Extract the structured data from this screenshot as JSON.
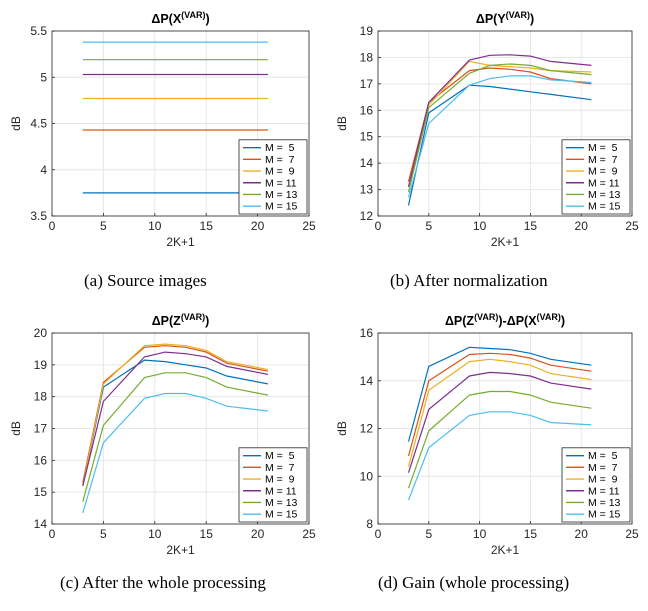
{
  "chart_data": [
    {
      "type": "line",
      "title": "ΔP(X",
      "title_sup": "(VAR)",
      "title_tail": ")",
      "xlabel": "2K+1",
      "ylabel": "dB",
      "xlim": [
        0,
        25
      ],
      "ylim": [
        3.5,
        5.5
      ],
      "xticks": [
        "0",
        "5",
        "10",
        "15",
        "20",
        "25"
      ],
      "yticks": [
        "3.5",
        "4",
        "4.5",
        "5",
        "5.5"
      ],
      "grid": true,
      "legend_position": "bottom-right",
      "caption": "(a) Source images",
      "x": [
        3,
        5,
        7,
        9,
        11,
        13,
        15,
        17,
        19,
        21
      ],
      "series": [
        {
          "name": "M =  5",
          "color": "#0072BD",
          "values": [
            3.75,
            3.75,
            3.75,
            3.75,
            3.75,
            3.75,
            3.75,
            3.75,
            3.75,
            3.75
          ]
        },
        {
          "name": "M =  7",
          "color": "#D95319",
          "values": [
            4.43,
            4.43,
            4.43,
            4.43,
            4.43,
            4.43,
            4.43,
            4.43,
            4.43,
            4.43
          ]
        },
        {
          "name": "M =  9",
          "color": "#EDB120",
          "values": [
            4.77,
            4.77,
            4.77,
            4.77,
            4.77,
            4.77,
            4.77,
            4.77,
            4.77,
            4.77
          ]
        },
        {
          "name": "M = 11",
          "color": "#7E2F8E",
          "values": [
            5.03,
            5.03,
            5.03,
            5.03,
            5.03,
            5.03,
            5.03,
            5.03,
            5.03,
            5.03
          ]
        },
        {
          "name": "M = 13",
          "color": "#77AC30",
          "values": [
            5.19,
            5.19,
            5.19,
            5.19,
            5.19,
            5.19,
            5.19,
            5.19,
            5.19,
            5.19
          ]
        },
        {
          "name": "M = 15",
          "color": "#4DBEEE",
          "values": [
            5.38,
            5.38,
            5.38,
            5.38,
            5.38,
            5.38,
            5.38,
            5.38,
            5.38,
            5.38
          ]
        }
      ]
    },
    {
      "type": "line",
      "title": "ΔP(Y",
      "title_sup": "(VAR)",
      "title_tail": ")",
      "xlabel": "2K+1",
      "ylabel": "dB",
      "xlim": [
        0,
        25
      ],
      "ylim": [
        12,
        19
      ],
      "xticks": [
        "0",
        "5",
        "10",
        "15",
        "20",
        "25"
      ],
      "yticks": [
        "12",
        "13",
        "14",
        "15",
        "16",
        "17",
        "18",
        "19"
      ],
      "grid": true,
      "legend_position": "bottom-right",
      "caption": "(b) After normalization",
      "x": [
        3,
        5,
        9,
        11,
        13,
        15,
        17,
        21
      ],
      "series": [
        {
          "name": "M =  5",
          "color": "#0072BD",
          "values": [
            12.4,
            15.9,
            16.95,
            16.9,
            16.8,
            16.7,
            16.6,
            16.4
          ]
        },
        {
          "name": "M =  7",
          "color": "#D95319",
          "values": [
            13.3,
            16.3,
            17.5,
            17.6,
            17.55,
            17.45,
            17.2,
            17.0
          ]
        },
        {
          "name": "M =  9",
          "color": "#EDB120",
          "values": [
            13.1,
            16.2,
            17.85,
            17.7,
            17.65,
            17.6,
            17.5,
            17.45
          ]
        },
        {
          "name": "M = 11",
          "color": "#7E2F8E",
          "values": [
            13.1,
            16.3,
            17.9,
            18.08,
            18.1,
            18.05,
            17.85,
            17.7
          ]
        },
        {
          "name": "M = 13",
          "color": "#77AC30",
          "values": [
            12.9,
            16.1,
            17.4,
            17.7,
            17.75,
            17.7,
            17.5,
            17.35
          ]
        },
        {
          "name": "M = 15",
          "color": "#4DBEEE",
          "values": [
            12.7,
            15.5,
            16.95,
            17.2,
            17.3,
            17.3,
            17.15,
            17.05
          ]
        }
      ]
    },
    {
      "type": "line",
      "title": "ΔP(Z",
      "title_sup": "(VAR)",
      "title_tail": ")",
      "xlabel": "2K+1",
      "ylabel": "dB",
      "xlim": [
        0,
        25
      ],
      "ylim": [
        14,
        20
      ],
      "xticks": [
        "0",
        "5",
        "10",
        "15",
        "20",
        "25"
      ],
      "yticks": [
        "14",
        "15",
        "16",
        "17",
        "18",
        "19",
        "20"
      ],
      "grid": true,
      "legend_position": "bottom-right",
      "caption": "(c) After the whole processing",
      "x": [
        3,
        5,
        9,
        11,
        13,
        15,
        17,
        21
      ],
      "series": [
        {
          "name": "M =  5",
          "color": "#0072BD",
          "values": [
            15.2,
            18.3,
            19.15,
            19.1,
            19.0,
            18.9,
            18.65,
            18.4
          ]
        },
        {
          "name": "M =  7",
          "color": "#D95319",
          "values": [
            15.3,
            18.45,
            19.55,
            19.6,
            19.55,
            19.4,
            19.05,
            18.8
          ]
        },
        {
          "name": "M =  9",
          "color": "#EDB120",
          "values": [
            15.2,
            18.4,
            19.6,
            19.65,
            19.6,
            19.45,
            19.1,
            18.85
          ]
        },
        {
          "name": "M = 11",
          "color": "#7E2F8E",
          "values": [
            15.2,
            17.85,
            19.25,
            19.4,
            19.35,
            19.25,
            18.95,
            18.7
          ]
        },
        {
          "name": "M = 13",
          "color": "#77AC30",
          "values": [
            14.7,
            17.1,
            18.6,
            18.75,
            18.75,
            18.6,
            18.3,
            18.05
          ]
        },
        {
          "name": "M = 15",
          "color": "#4DBEEE",
          "values": [
            14.35,
            16.55,
            17.95,
            18.1,
            18.1,
            17.95,
            17.7,
            17.55
          ]
        }
      ]
    },
    {
      "type": "line",
      "title": "ΔP(Z",
      "title_sup": "(VAR)",
      "title_mid": ")-ΔP(X",
      "title_sup2": "(VAR)",
      "title_tail": ")",
      "xlabel": "2K+1",
      "ylabel": "dB",
      "xlim": [
        0,
        25
      ],
      "ylim": [
        8,
        16
      ],
      "xticks": [
        "0",
        "5",
        "10",
        "15",
        "20",
        "25"
      ],
      "yticks": [
        "8",
        "10",
        "12",
        "14",
        "16"
      ],
      "grid": true,
      "legend_position": "bottom-right",
      "caption": "(d) Gain (whole processing)",
      "x": [
        3,
        5,
        9,
        11,
        13,
        15,
        17,
        21
      ],
      "series": [
        {
          "name": "M =  5",
          "color": "#0072BD",
          "values": [
            11.45,
            14.6,
            15.4,
            15.35,
            15.3,
            15.15,
            14.9,
            14.65
          ]
        },
        {
          "name": "M =  7",
          "color": "#D95319",
          "values": [
            10.85,
            14.0,
            15.1,
            15.15,
            15.1,
            14.95,
            14.65,
            14.4
          ]
        },
        {
          "name": "M =  9",
          "color": "#EDB120",
          "values": [
            10.4,
            13.6,
            14.8,
            14.9,
            14.8,
            14.65,
            14.3,
            14.05
          ]
        },
        {
          "name": "M = 11",
          "color": "#7E2F8E",
          "values": [
            10.15,
            12.8,
            14.2,
            14.35,
            14.3,
            14.2,
            13.9,
            13.65
          ]
        },
        {
          "name": "M = 13",
          "color": "#77AC30",
          "values": [
            9.5,
            11.9,
            13.4,
            13.55,
            13.55,
            13.4,
            13.1,
            12.85
          ]
        },
        {
          "name": "M = 15",
          "color": "#4DBEEE",
          "values": [
            9.0,
            11.2,
            12.55,
            12.7,
            12.7,
            12.55,
            12.25,
            12.15
          ]
        }
      ]
    }
  ]
}
